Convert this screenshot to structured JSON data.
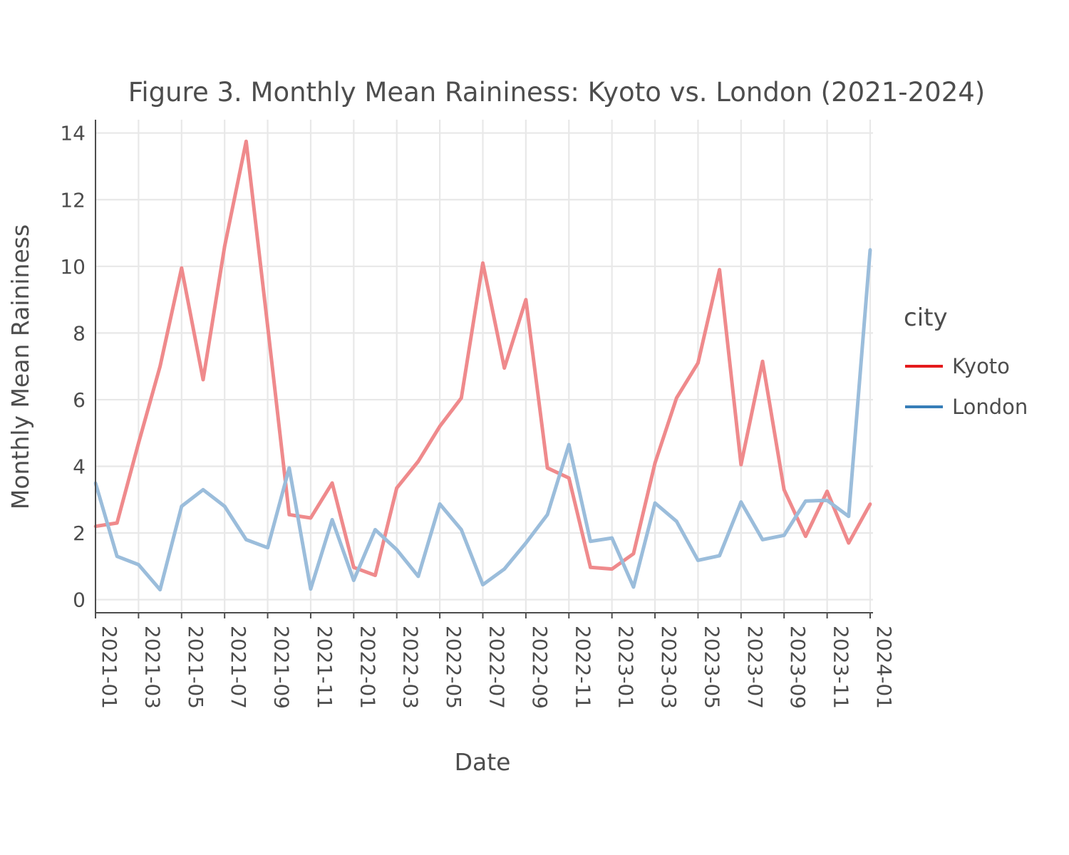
{
  "chart_data": {
    "type": "line",
    "title": "Figure 3. Monthly Mean Raininess: Kyoto vs. London (2021-2024)",
    "xlabel": "Date",
    "ylabel": "Monthly Mean Raininess",
    "ylim": [
      -0.35,
      14.4
    ],
    "yticks": [
      0,
      2,
      4,
      6,
      8,
      10,
      12,
      14
    ],
    "xticks": [
      "2021-01",
      "2021-03",
      "2021-05",
      "2021-07",
      "2021-09",
      "2021-11",
      "2022-01",
      "2022-03",
      "2022-05",
      "2022-07",
      "2022-09",
      "2022-11",
      "2023-01",
      "2023-03",
      "2023-05",
      "2023-07",
      "2023-09",
      "2023-11",
      "2024-01"
    ],
    "grid": true,
    "legend": {
      "title": "city",
      "position": "right"
    },
    "x": [
      "2021-01",
      "2021-02",
      "2021-03",
      "2021-04",
      "2021-05",
      "2021-06",
      "2021-07",
      "2021-08",
      "2021-09",
      "2021-10",
      "2021-11",
      "2021-12",
      "2022-01",
      "2022-02",
      "2022-03",
      "2022-04",
      "2022-05",
      "2022-06",
      "2022-07",
      "2022-08",
      "2022-09",
      "2022-10",
      "2022-11",
      "2022-12",
      "2023-01",
      "2023-02",
      "2023-03",
      "2023-04",
      "2023-05",
      "2023-06",
      "2023-07",
      "2023-08",
      "2023-09",
      "2023-10",
      "2023-11",
      "2023-12",
      "2024-01"
    ],
    "series": [
      {
        "name": "Kyoto",
        "color": "#e41a1c",
        "line_color": "#ef8a8c",
        "values": [
          2.2,
          2.3,
          4.7,
          7.0,
          9.95,
          6.6,
          10.6,
          13.75,
          8.2,
          2.55,
          2.45,
          3.5,
          0.97,
          0.73,
          3.35,
          4.15,
          5.2,
          6.05,
          10.1,
          6.95,
          9.0,
          3.95,
          3.65,
          0.97,
          0.92,
          1.38,
          4.1,
          6.05,
          7.1,
          9.9,
          4.05,
          7.15,
          3.3,
          1.9,
          3.25,
          1.7,
          2.87
        ]
      },
      {
        "name": "London",
        "color": "#377eb8",
        "line_color": "#9bbddb",
        "values": [
          3.5,
          1.3,
          1.05,
          0.3,
          2.8,
          3.3,
          2.8,
          1.8,
          1.56,
          3.95,
          0.32,
          2.4,
          0.58,
          2.1,
          1.5,
          0.7,
          2.87,
          2.1,
          0.45,
          0.92,
          1.7,
          2.55,
          4.65,
          1.75,
          1.85,
          0.38,
          2.9,
          2.35,
          1.18,
          1.32,
          2.93,
          1.8,
          1.93,
          2.96,
          2.98,
          2.5,
          10.5
        ]
      }
    ]
  }
}
